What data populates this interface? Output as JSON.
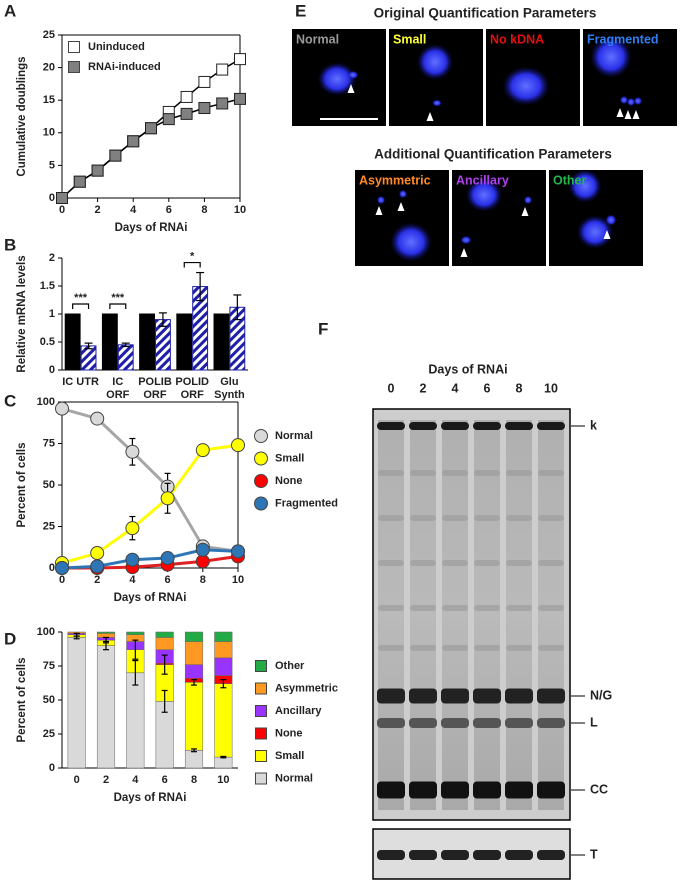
{
  "chart_data": [
    {
      "panel": "A",
      "type": "line",
      "marker": "square",
      "legend": "upper left",
      "x_label": "Days of RNAi",
      "y_label": "Cumulative doublings",
      "x": [
        0,
        1,
        2,
        3,
        4,
        5,
        6,
        7,
        8,
        9,
        10
      ],
      "xlim": [
        0,
        10
      ],
      "xticks": [
        0,
        2,
        4,
        6,
        8,
        10
      ],
      "ylim": [
        0,
        25
      ],
      "yticks": [
        0,
        5,
        10,
        15,
        20,
        25
      ],
      "series": [
        {
          "name": "Uninduced",
          "color": "#ffffff",
          "line_color": "#000000",
          "values": [
            0,
            2.5,
            4.2,
            6.5,
            8.7,
            10.7,
            13.2,
            15.5,
            17.8,
            19.7,
            21.3
          ]
        },
        {
          "name": "RNAi-induced",
          "color": "#808080",
          "line_color": "#000000",
          "values": [
            0,
            2.5,
            4.2,
            6.5,
            8.7,
            10.7,
            12.1,
            12.9,
            13.8,
            14.5,
            15.2
          ]
        }
      ]
    },
    {
      "panel": "B",
      "type": "bar",
      "y_label": "Relative mRNA levels",
      "categories": [
        [
          "IC UTR"
        ],
        [
          "IC",
          "ORF"
        ],
        [
          "POLIB",
          "ORF"
        ],
        [
          "POLID",
          "ORF"
        ],
        [
          "Glu",
          "Synth"
        ]
      ],
      "ylim": [
        0,
        2
      ],
      "yticks": [
        0,
        0.5,
        1,
        1.5,
        2
      ],
      "series": [
        {
          "color": "#000000",
          "values": [
            1,
            1,
            1,
            1,
            1
          ]
        },
        {
          "color": "#1f1fa8",
          "pattern": "hatch",
          "values": [
            0.43,
            0.45,
            0.9,
            1.49,
            1.12
          ],
          "errors": [
            0.05,
            0.03,
            0.12,
            0.25,
            0.22
          ]
        }
      ],
      "significance": [
        "***",
        "***",
        null,
        "*",
        null
      ]
    },
    {
      "panel": "C",
      "type": "line",
      "marker": "circle",
      "legend": "right",
      "x_label": "Days of RNAi",
      "y_label": "Percent of cells",
      "x": [
        0,
        2,
        4,
        6,
        8,
        10
      ],
      "xlim": [
        0,
        10
      ],
      "xticks": [
        0,
        2,
        4,
        6,
        8,
        10
      ],
      "ylim": [
        0,
        100
      ],
      "yticks": [
        0,
        25,
        50,
        75,
        100
      ],
      "series": [
        {
          "name": "Normal",
          "color": "#d9d9d9",
          "line_color": "#a6a6a6",
          "values": [
            96,
            90,
            70,
            49,
            13,
            10
          ],
          "errors": [
            1,
            1,
            8,
            8,
            2,
            1
          ]
        },
        {
          "name": "Small",
          "color": "#ffff00",
          "line_color": "#ffff00",
          "values": [
            3,
            9,
            24,
            42,
            71,
            74
          ],
          "errors": [
            1,
            3,
            7,
            9,
            3,
            2
          ]
        },
        {
          "name": "None",
          "color": "#ff0000",
          "line_color": "#e02020",
          "values": [
            0,
            0,
            0.5,
            2,
            4,
            7
          ],
          "errors": [
            0,
            0,
            0.5,
            1,
            1,
            1
          ]
        },
        {
          "name": "Fragmented",
          "color": "#2e75b6",
          "line_color": "#2e75b6",
          "values": [
            0,
            1,
            5,
            6,
            11,
            10
          ],
          "errors": [
            0,
            1,
            1,
            1,
            1,
            1
          ]
        }
      ]
    },
    {
      "panel": "D",
      "type": "stacked_bar",
      "legend": "right",
      "x_label": "Days of RNAi",
      "y_label": "Percent of cells",
      "categories": [
        "0",
        "2",
        "4",
        "6",
        "8",
        "10"
      ],
      "ylim": [
        0,
        100
      ],
      "yticks": [
        0,
        25,
        50,
        75,
        100
      ],
      "series": [
        {
          "name": "Normal",
          "color": "#d9d9d9",
          "values": [
            96,
            90,
            70,
            49,
            13,
            8
          ],
          "errors": [
            1,
            3,
            9,
            8,
            1,
            0.5
          ]
        },
        {
          "name": "Small",
          "color": "#ffff00",
          "values": [
            2,
            4,
            17,
            27,
            50,
            54
          ],
          "errors": [
            1,
            2,
            7,
            7,
            2,
            3
          ]
        },
        {
          "name": "None",
          "color": "#ff0000",
          "values": [
            0,
            0,
            0,
            1,
            3,
            6
          ]
        },
        {
          "name": "Ancillary",
          "color": "#9933ff",
          "values": [
            1,
            2,
            6,
            10,
            10,
            13
          ]
        },
        {
          "name": "Asymmetric",
          "color": "#ff9922",
          "values": [
            1,
            3,
            5,
            9,
            17,
            12
          ]
        },
        {
          "name": "Other",
          "color": "#22aa44",
          "values": [
            0,
            1,
            2,
            4,
            7,
            7
          ]
        }
      ]
    }
  ],
  "panel_e": {
    "panel": "E",
    "title_original": "Original Quantification Parameters",
    "title_additional": "Additional Quantification Parameters",
    "original": [
      {
        "label": "Normal",
        "color": "#9a9a9a"
      },
      {
        "label": "Small",
        "color": "#ffff33"
      },
      {
        "label": "No kDNA",
        "color": "#e01010"
      },
      {
        "label": "Fragmented",
        "color": "#2f7ff0"
      }
    ],
    "additional": [
      {
        "label": "Asymmetric",
        "color": "#ff8a2a"
      },
      {
        "label": "Ancillary",
        "color": "#b040f0"
      },
      {
        "label": "Other",
        "color": "#22b84a"
      }
    ]
  },
  "panel_f": {
    "panel": "F",
    "axis_label": "Days of RNAi",
    "lanes": [
      "0",
      "2",
      "4",
      "6",
      "8",
      "10"
    ],
    "bands": [
      "k",
      "N/G",
      "L",
      "CC"
    ],
    "loading": "T"
  }
}
